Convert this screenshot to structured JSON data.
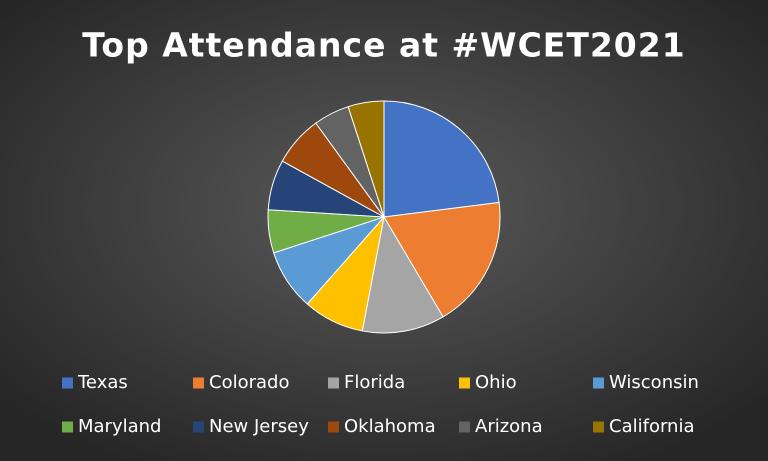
{
  "chart_data": {
    "type": "pie",
    "title": "Top Attendance at #WCET2021",
    "categories": [
      "Texas",
      "Colorado",
      "Florida",
      "Ohio",
      "Wisconsin",
      "Maryland",
      "New Jersey",
      "Oklahoma",
      "Arizona",
      "California"
    ],
    "values": [
      23,
      18.5,
      11.5,
      8.5,
      8.5,
      6,
      7,
      7,
      5,
      5
    ],
    "colors": [
      "#4472c4",
      "#ed7d31",
      "#a5a5a5",
      "#ffc000",
      "#5b9bd5",
      "#70ad47",
      "#264478",
      "#9e480e",
      "#636363",
      "#997300"
    ],
    "legend": "bottom"
  }
}
